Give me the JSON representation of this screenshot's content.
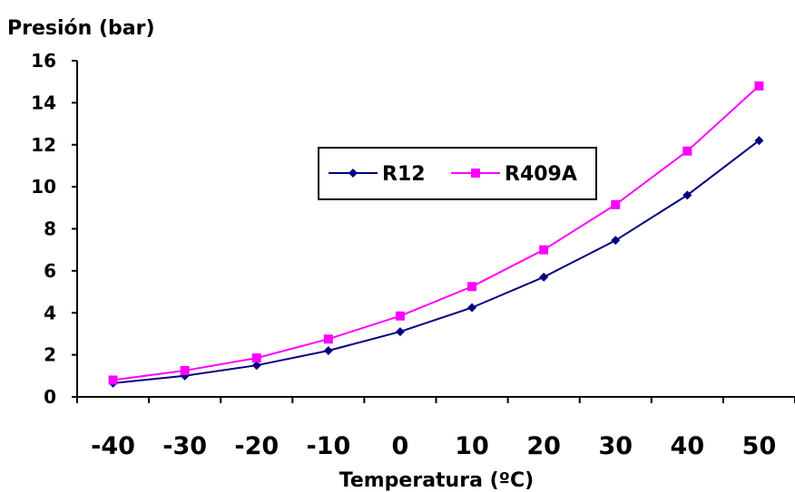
{
  "chart_data": {
    "type": "line",
    "ylabel": "Presión (bar)",
    "xlabel": "Temperatura (ºC)",
    "categories": [
      "-40",
      "-30",
      "-20",
      "-10",
      "0",
      "10",
      "20",
      "30",
      "40",
      "50"
    ],
    "yticks": [
      "0",
      "2",
      "4",
      "6",
      "8",
      "10",
      "12",
      "14",
      "16"
    ],
    "ylim": [
      0,
      16
    ],
    "grid": false,
    "legend_position": "center",
    "series": [
      {
        "name": "R12",
        "color": "#000080",
        "marker": "diamond",
        "values": [
          0.65,
          1.0,
          1.5,
          2.2,
          3.1,
          4.25,
          5.7,
          7.45,
          9.6,
          12.2
        ]
      },
      {
        "name": "R409A",
        "color": "#ff00ff",
        "marker": "square",
        "values": [
          0.8,
          1.25,
          1.85,
          2.75,
          3.85,
          5.25,
          7.0,
          9.15,
          11.7,
          14.8
        ]
      }
    ]
  }
}
